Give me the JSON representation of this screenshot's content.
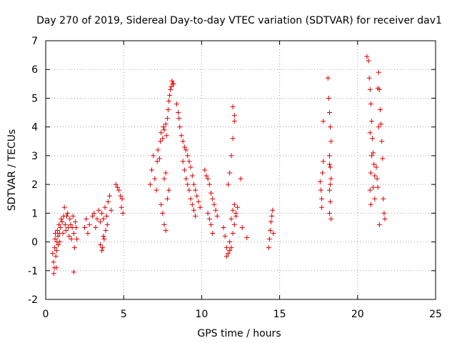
{
  "chart_data": {
    "type": "scatter",
    "title": "Day 270 of 2019, Sidereal Day-to-day VTEC variation (SDTVAR) for receiver dav1",
    "xlabel": "GPS time / hours",
    "ylabel": "SDTVAR / TECUs",
    "xlim": [
      0,
      25
    ],
    "ylim": [
      -2,
      7
    ],
    "xticks": [
      "0",
      "5",
      "10",
      "15",
      "20",
      "25"
    ],
    "yticks": [
      "-2",
      "-1",
      "0",
      "1",
      "2",
      "3",
      "4",
      "5",
      "6",
      "7"
    ],
    "grid": true,
    "marker": "+",
    "color": "#e00000",
    "series": [
      {
        "name": "SDTVAR",
        "x": [
          0.45,
          0.5,
          0.52,
          0.55,
          0.58,
          0.6,
          0.62,
          0.65,
          0.68,
          0.7,
          0.72,
          0.75,
          0.78,
          0.8,
          0.85,
          0.88,
          0.9,
          0.95,
          1.0,
          1.05,
          1.1,
          1.15,
          1.2,
          1.25,
          1.3,
          1.35,
          1.4,
          1.45,
          1.5,
          1.55,
          1.6,
          1.65,
          1.7,
          1.75,
          1.8,
          1.85,
          1.9,
          1.95,
          2.0,
          1.8,
          2.5,
          2.6,
          2.7,
          2.8,
          3.0,
          3.1,
          3.2,
          3.3,
          3.4,
          3.5,
          3.6,
          3.7,
          3.8,
          3.9,
          4.0,
          4.1,
          4.2,
          3.5,
          3.6,
          3.7,
          3.65,
          3.75,
          3.85,
          3.95,
          4.5,
          4.6,
          4.7,
          4.8,
          4.85,
          4.9,
          4.95,
          6.7,
          6.8,
          6.9,
          7.0,
          7.1,
          7.15,
          7.2,
          7.3,
          7.35,
          7.4,
          7.5,
          7.55,
          7.6,
          7.7,
          7.75,
          7.8,
          7.85,
          7.9,
          7.95,
          8.0,
          8.05,
          8.1,
          8.15,
          8.2,
          7.4,
          7.5,
          7.6,
          7.7,
          7.8,
          7.9,
          7.6,
          7.7,
          8.4,
          8.5,
          8.55,
          8.6,
          8.7,
          8.8,
          8.9,
          9.0,
          9.1,
          9.2,
          9.3,
          9.4,
          9.5,
          9.6,
          9.7,
          9.8,
          9.9,
          8.8,
          8.9,
          9.0,
          9.1,
          9.2,
          9.3,
          9.4,
          9.5,
          9.6,
          10.2,
          10.3,
          10.4,
          10.5,
          10.6,
          10.7,
          10.8,
          10.9,
          11.0,
          10.4,
          10.5,
          10.6,
          10.7,
          11.4,
          11.5,
          11.6,
          11.7,
          11.8,
          11.9,
          12.0,
          12.1,
          12.2,
          12.3,
          12.5,
          12.6,
          12.9,
          11.7,
          11.8,
          11.9,
          12.0,
          12.1,
          11.6,
          11.8,
          11.9,
          12.0,
          12.1,
          12.0,
          12.1,
          12.2,
          14.3,
          14.35,
          14.4,
          14.45,
          14.5,
          14.55,
          14.6,
          17.6,
          17.65,
          17.7,
          17.75,
          17.8,
          17.7,
          17.8,
          18.1,
          18.15,
          18.2,
          18.25,
          18.3,
          18.2,
          18.25,
          18.3,
          18.2,
          18.25,
          18.2,
          18.3,
          18.25,
          18.2,
          20.6,
          20.7,
          20.75,
          20.8,
          20.85,
          20.9,
          20.95,
          21.0,
          21.05,
          21.1,
          21.0,
          21.1,
          20.8,
          20.85,
          20.9,
          20.8,
          20.85,
          21.2,
          21.25,
          21.3,
          21.35,
          21.4,
          21.45,
          21.5,
          21.55,
          21.6,
          21.65,
          21.7,
          21.75,
          21.3,
          21.4,
          21.35
        ],
        "y": [
          -0.4,
          -0.7,
          -1.1,
          -0.9,
          -0.2,
          0.1,
          0.3,
          -0.5,
          -0.9,
          -0.3,
          0.0,
          0.4,
          0.2,
          -0.1,
          0.6,
          0.3,
          0.0,
          0.5,
          0.8,
          0.7,
          0.3,
          0.9,
          1.2,
          0.6,
          0.4,
          0.9,
          1.0,
          0.5,
          0.2,
          0.8,
          0.6,
          0.1,
          0.5,
          0.9,
          0.3,
          -0.2,
          0.7,
          0.5,
          0.1,
          -1.05,
          0.5,
          0.8,
          0.3,
          0.6,
          0.9,
          1.0,
          0.5,
          0.8,
          1.1,
          0.7,
          1.0,
          0.8,
          1.2,
          0.9,
          1.4,
          1.6,
          1.1,
          -0.1,
          -0.3,
          0.2,
          -0.2,
          0.1,
          0.4,
          0.6,
          2.0,
          1.9,
          1.8,
          1.6,
          1.2,
          1.5,
          1.0,
          2.0,
          2.5,
          3.0,
          2.2,
          1.8,
          2.8,
          3.2,
          2.9,
          3.5,
          3.8,
          3.6,
          4.0,
          3.9,
          4.1,
          3.7,
          4.3,
          4.6,
          4.9,
          5.1,
          5.3,
          5.4,
          5.6,
          5.5,
          5.5,
          1.3,
          1.0,
          0.6,
          0.4,
          1.5,
          1.8,
          2.2,
          2.4,
          4.8,
          4.5,
          4.3,
          4.0,
          3.7,
          3.5,
          3.3,
          3.2,
          3.0,
          2.8,
          2.6,
          2.3,
          2.0,
          1.8,
          1.6,
          1.4,
          1.2,
          2.8,
          2.5,
          2.2,
          2.0,
          1.8,
          1.5,
          1.3,
          1.1,
          0.9,
          2.5,
          2.3,
          2.2,
          2.0,
          1.7,
          1.5,
          1.3,
          1.1,
          0.9,
          1.0,
          0.8,
          0.6,
          0.3,
          0.5,
          0.2,
          -0.2,
          -0.4,
          0.0,
          -0.2,
          0.3,
          0.6,
          0.9,
          1.2,
          2.2,
          0.5,
          0.15,
          2.0,
          2.4,
          3.0,
          3.6,
          4.4,
          -0.5,
          -0.3,
          0.8,
          1.1,
          1.3,
          4.7,
          4.2,
          1.0,
          -0.2,
          0.1,
          0.4,
          0.7,
          0.9,
          1.1,
          0.3,
          2.1,
          1.8,
          1.5,
          2.4,
          2.8,
          1.2,
          4.2,
          5.7,
          5.0,
          4.5,
          4.0,
          3.5,
          3.0,
          2.6,
          2.2,
          1.8,
          1.4,
          1.0,
          0.8,
          2.0,
          2.7,
          6.45,
          6.3,
          5.7,
          5.3,
          4.8,
          4.2,
          3.6,
          3.1,
          2.7,
          2.3,
          1.9,
          1.5,
          1.8,
          2.4,
          3.0,
          3.8,
          1.3,
          2.6,
          2.2,
          1.9,
          5.9,
          5.3,
          4.6,
          4.1,
          3.5,
          2.9,
          1.5,
          1.0,
          0.8,
          5.35,
          0.6,
          4.0
        ]
      }
    ]
  }
}
